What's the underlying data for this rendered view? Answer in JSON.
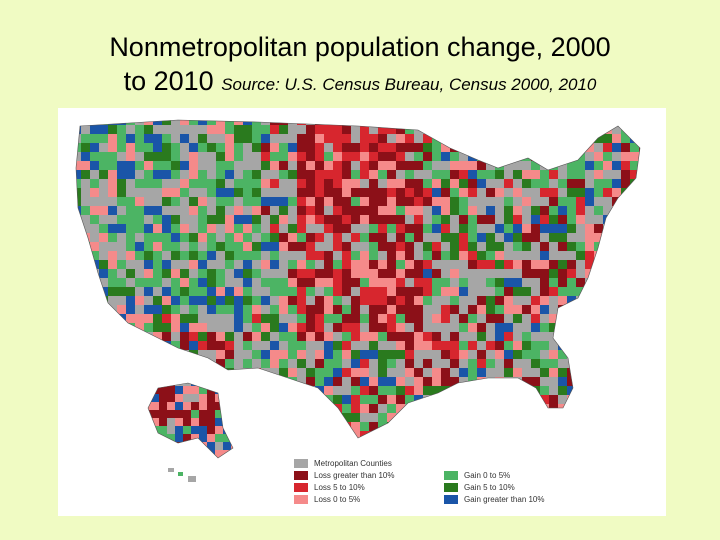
{
  "title": {
    "line1": "Nonmetropolitan population change, 2000",
    "line2_main": "to 2010",
    "source": "Source: U.S. Census Bureau, Census 2000, 2010"
  },
  "legend": [
    {
      "label": "Metropolitan Counties",
      "color": "#a6a6a6"
    },
    {
      "label": "Loss greater than 10%",
      "color": "#8c1018"
    },
    {
      "label": "Loss 5 to 10%",
      "color": "#d7262e"
    },
    {
      "label": "Loss 0 to 5%",
      "color": "#f58a8a"
    },
    {
      "label": "Gain 0 to 5%",
      "color": "#4cb464"
    },
    {
      "label": "Gain 5 to 10%",
      "color": "#2a7a1e"
    },
    {
      "label": "Gain greater than 10%",
      "color": "#1a55a8"
    }
  ],
  "colors": {
    "background": "#f0fbc3",
    "map_panel": "#ffffff"
  }
}
